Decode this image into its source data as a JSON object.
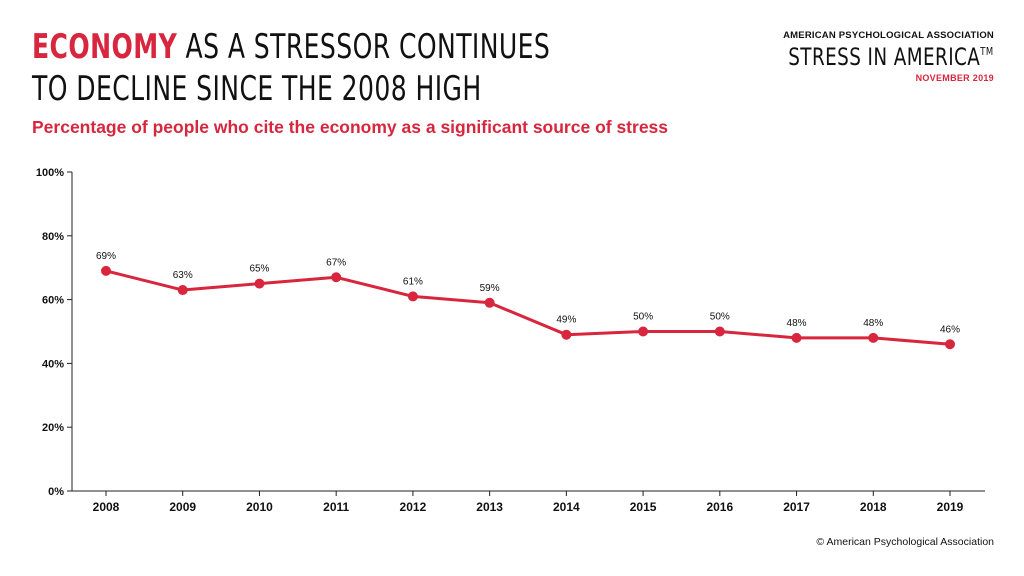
{
  "header": {
    "title_accent": "ECONOMY",
    "title_rest": " AS A STRESSOR CONTINUES TO DECLINE SINCE THE 2008 HIGH",
    "subtitle": "Percentage of people who cite the economy as a significant source of stress"
  },
  "brand": {
    "org": "AMERICAN PSYCHOLOGICAL ASSOCIATION",
    "name": "STRESS IN AMERICA",
    "trademark": "TM",
    "date": "NOVEMBER 2019"
  },
  "footer": {
    "copyright": "© American Psychological Association"
  },
  "colors": {
    "accent": "#d7263d",
    "text": "#111111",
    "axis": "#222222"
  },
  "chart_data": {
    "type": "line",
    "title": "",
    "xlabel": "",
    "ylabel": "",
    "x": [
      "2008",
      "2009",
      "2010",
      "2011",
      "2012",
      "2013",
      "2014",
      "2015",
      "2016",
      "2017",
      "2018",
      "2019"
    ],
    "series": [
      {
        "values": [
          69,
          63,
          65,
          67,
          61,
          59,
          49,
          50,
          50,
          48,
          48,
          46
        ]
      }
    ],
    "data_labels": [
      "69%",
      "63%",
      "65%",
      "67%",
      "61%",
      "59%",
      "49%",
      "50%",
      "50%",
      "48%",
      "48%",
      "46%"
    ],
    "ylim": [
      0,
      100
    ],
    "yticks": [
      0,
      20,
      40,
      60,
      80,
      100
    ],
    "ytick_labels": [
      "0%",
      "20%",
      "40%",
      "60%",
      "80%",
      "100%"
    ],
    "grid": false,
    "legend": "none"
  }
}
